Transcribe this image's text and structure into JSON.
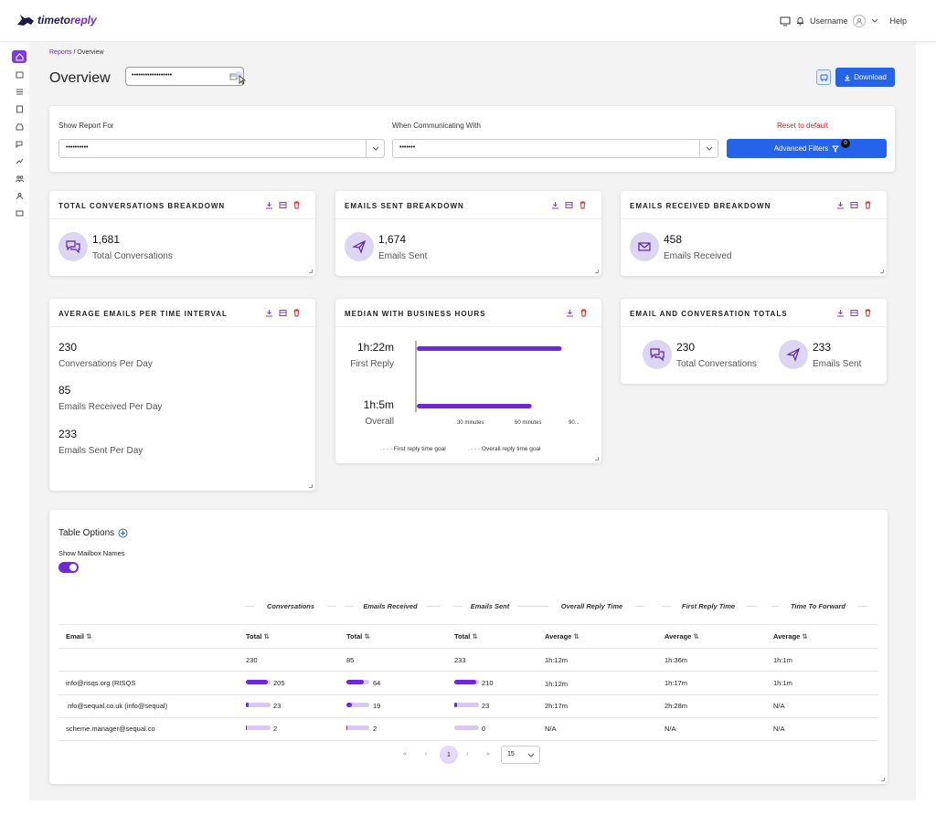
{
  "app": {
    "logo_prefix": "timeto",
    "logo_suffix": "reply",
    "username": "Username",
    "help": "Help"
  },
  "breadcrumb": {
    "root": "Reports",
    "sep": "/",
    "current": "Overview"
  },
  "page": {
    "title": "Overview",
    "date_value": "••••••••••••••••••",
    "download_label": "Download"
  },
  "filters": {
    "show_report_for_label": "Show Report For",
    "show_report_for_value": "••••••••••",
    "communicating_label": "When Communicating With",
    "communicating_value": "•••••••",
    "reset_label": "Reset to default",
    "advanced_label": "Advanced Filters",
    "advanced_count": "0"
  },
  "cards": {
    "total_conversations": {
      "title": "TOTAL CONVERSATIONS BREAKDOWN",
      "value": "1,681",
      "label": "Total Conversations"
    },
    "emails_sent": {
      "title": "EMAILS SENT BREAKDOWN",
      "value": "1,674",
      "label": "Emails Sent"
    },
    "emails_received": {
      "title": "EMAILS RECEIVED BREAKDOWN",
      "value": "458",
      "label": "Emails Received"
    },
    "average": {
      "title": "AVERAGE EMAILS PER TIME INTERVAL",
      "items": [
        {
          "value": "230",
          "label": "Conversations Per Day"
        },
        {
          "value": "85",
          "label": "Emails Received Per Day"
        },
        {
          "value": "233",
          "label": "Emails Sent Per Day"
        }
      ]
    },
    "median": {
      "title": "MEDIAN WITH BUSINESS HOURS",
      "first_value": "1h:22m",
      "first_label": "First Reply",
      "overall_value": "1h:5m",
      "overall_label": "Overall",
      "ticks": [
        "30 minutes",
        "60 minutes",
        "90..."
      ],
      "legend_first": "First reply time goal",
      "legend_overall": "Overall reply time goal"
    },
    "totals": {
      "title": "EMAIL AND CONVERSATION TOTALS",
      "conv_value": "230",
      "conv_label": "Total Conversations",
      "sent_value": "233",
      "sent_label": "Emails Sent"
    }
  },
  "chart_data": {
    "type": "bar",
    "orientation": "horizontal",
    "categories": [
      "First Reply",
      "Overall"
    ],
    "values": [
      82,
      65
    ],
    "value_labels": [
      "1h:22m",
      "1h:5m"
    ],
    "xlabel": "minutes",
    "xlim": [
      0,
      90
    ],
    "x_ticks": [
      "30 minutes",
      "60 minutes",
      "90..."
    ],
    "bar_color": "#6d28d9",
    "legend": [
      "First reply time goal",
      "Overall reply time goal"
    ],
    "legend_position": "bottom"
  },
  "table": {
    "title": "Table Options",
    "show_mailbox_label": "Show Mailbox Names",
    "groups": [
      "Conversations",
      "Emails Received",
      "Emails Sent",
      "Overall Reply Time",
      "First Reply Time",
      "Time To Forward"
    ],
    "headers": [
      "Email",
      "Total",
      "Total",
      "Total",
      "Average",
      "Average",
      "Average"
    ],
    "sort_icon": "⇅",
    "totals_row": [
      "",
      "230",
      "85",
      "233",
      "1h:12m",
      "1h:36m",
      "1h:1m"
    ],
    "rows": [
      {
        "email": "info@risqs.org (RISQS",
        "conv": "205",
        "conv_frac": 0.89,
        "recv": "64",
        "recv_frac": 0.75,
        "sent": "210",
        "sent_frac": 0.9,
        "overall": "1h:12m",
        "first": "1h:17m",
        "forward": "1h:1m"
      },
      {
        "email": "nfo@sequal.co.uk (info@sequal)",
        "conv": "23",
        "conv_frac": 0.1,
        "recv": "19",
        "recv_frac": 0.22,
        "sent": "23",
        "sent_frac": 0.1,
        "overall": "2h:17m",
        "first": "2h:28m",
        "forward": "N/A"
      },
      {
        "email": "scheme.manager@sequal.co",
        "conv": "2",
        "conv_frac": 0.01,
        "recv": "2",
        "recv_frac": 0.02,
        "sent": "0",
        "sent_frac": 0.0,
        "overall": "N/A",
        "first": "N/A",
        "forward": "N/A"
      }
    ],
    "pager": {
      "first": "«",
      "prev": "‹",
      "current": "1",
      "next": "›",
      "last": "»",
      "page_size": "15"
    }
  },
  "colors": {
    "accent": "#6d28d9",
    "primary_button": "#2563eb",
    "danger": "#c81e1e",
    "icon_circle": "#ddd6f3"
  }
}
